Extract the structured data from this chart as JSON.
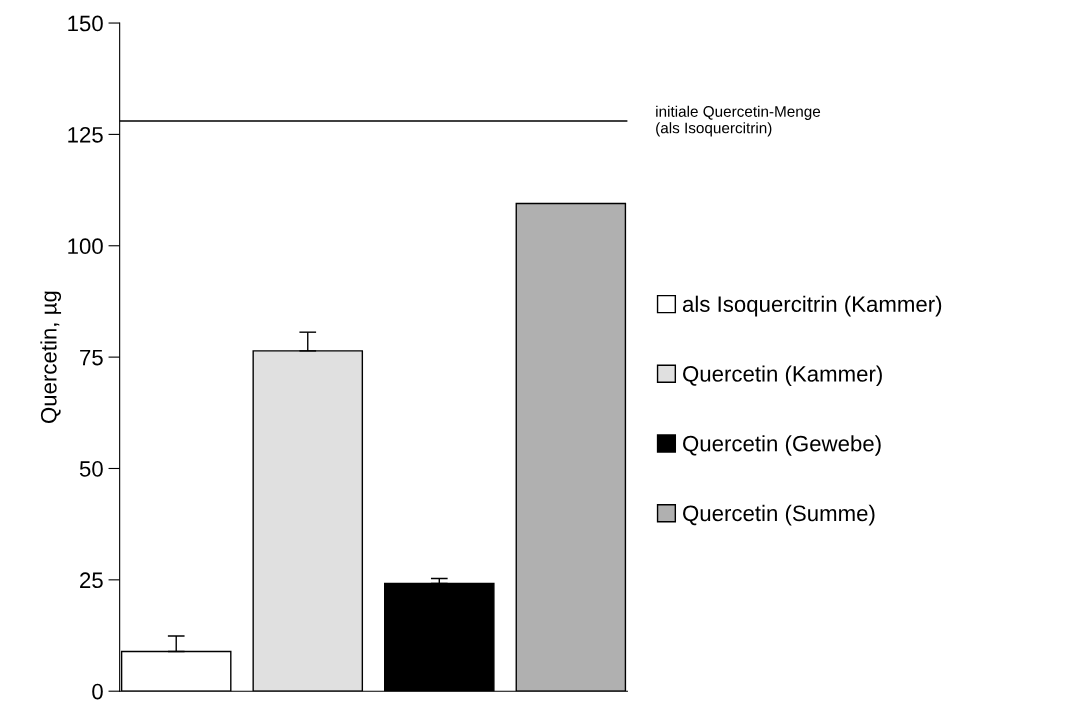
{
  "chart_data": {
    "type": "bar",
    "ylabel": "Quercetin, µg",
    "categories": [
      null,
      null,
      null,
      null
    ],
    "series": [
      {
        "name": "als Isoquercitrin (Kammer)",
        "color": "#ffffff",
        "values": [
          8.9,
          null,
          null,
          null
        ],
        "errors": [
          [
            8.9,
            12.4
          ],
          null,
          null,
          null
        ]
      },
      {
        "name": "Quercetin (Kammer)",
        "color": "#e0e0e0",
        "values": [
          null,
          76.4,
          null,
          null
        ],
        "errors": [
          null,
          [
            76.4,
            80.6
          ],
          null,
          null
        ]
      },
      {
        "name": "Quercetin (Gewebe)",
        "color": "#000000",
        "values": [
          null,
          null,
          24.2,
          null
        ],
        "errors": [
          null,
          null,
          [
            24.2,
            25.3
          ],
          null
        ]
      },
      {
        "name": "Quercetin (Summe)",
        "color": "#b0b0b0",
        "values": [
          null,
          null,
          null,
          109.5
        ]
      }
    ],
    "ylim": [
      0,
      150
    ],
    "yticks": [
      0,
      25,
      50,
      75,
      100,
      125,
      150
    ],
    "ref_lines": [
      {
        "axis": "y",
        "value": 128,
        "label": "initiale Quercetin-Menge\n(als Isoquercitrin)",
        "color": "#000000"
      }
    ],
    "tick_labels": "y",
    "legend": "right",
    "grid": false
  }
}
